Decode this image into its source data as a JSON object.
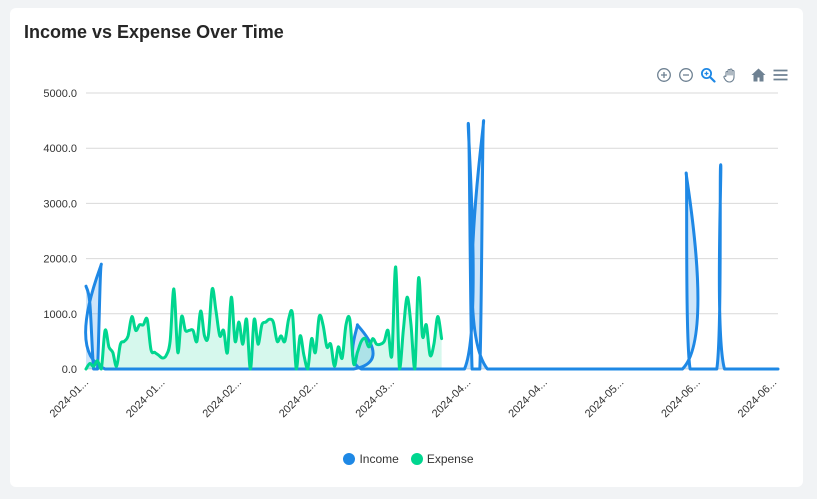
{
  "chart_data": {
    "type": "area",
    "title": "Income vs Expense Over Time",
    "xlabel": "",
    "ylabel": "",
    "ylim": [
      0,
      5000
    ],
    "y_ticks": [
      "0.0",
      "1000.0",
      "2000.0",
      "3000.0",
      "4000.0",
      "5000.0"
    ],
    "x_range": [
      "2024-01-01",
      "2024-06-30"
    ],
    "x_ticks": [
      {
        "date": "2024-01-01",
        "label": "2024-01..."
      },
      {
        "date": "2024-01-21",
        "label": "2024-01..."
      },
      {
        "date": "2024-02-10",
        "label": "2024-02..."
      },
      {
        "date": "2024-03-01",
        "label": "2024-02..."
      },
      {
        "date": "2024-03-21",
        "label": "2024-03..."
      },
      {
        "date": "2024-04-10",
        "label": "2024-04..."
      },
      {
        "date": "2024-04-30",
        "label": "2024-04..."
      },
      {
        "date": "2024-05-20",
        "label": "2024-05..."
      },
      {
        "date": "2024-06-09",
        "label": "2024-06..."
      },
      {
        "date": "2024-06-29",
        "label": "2024-06..."
      }
    ],
    "grid": true,
    "legend_position": "bottom-center",
    "series": [
      {
        "name": "Income",
        "color": "#1e88e5",
        "points": [
          [
            "2024-01-01",
            1500
          ],
          [
            "2024-01-02",
            1200
          ],
          [
            "2024-01-03",
            0
          ],
          [
            "2024-01-04",
            0
          ],
          [
            "2024-01-05",
            1900
          ],
          [
            "2024-01-06",
            0
          ],
          [
            "2024-03-11",
            0
          ],
          [
            "2024-03-12",
            800
          ],
          [
            "2024-03-13",
            0
          ],
          [
            "2024-04-09",
            0
          ],
          [
            "2024-04-10",
            4450
          ],
          [
            "2024-04-11",
            0
          ],
          [
            "2024-04-13",
            0
          ],
          [
            "2024-04-14",
            4500
          ],
          [
            "2024-04-15",
            0
          ],
          [
            "2024-06-05",
            0
          ],
          [
            "2024-06-06",
            3550
          ],
          [
            "2024-06-07",
            0
          ],
          [
            "2024-06-14",
            0
          ],
          [
            "2024-06-15",
            3700
          ],
          [
            "2024-06-16",
            0
          ],
          [
            "2024-06-30",
            0
          ]
        ]
      },
      {
        "name": "Expense",
        "color": "#00d68f",
        "points": [
          [
            "2024-01-01",
            0
          ],
          [
            "2024-01-02",
            100
          ],
          [
            "2024-01-03",
            50
          ],
          [
            "2024-01-04",
            150
          ],
          [
            "2024-01-05",
            0
          ],
          [
            "2024-01-06",
            700
          ],
          [
            "2024-01-07",
            400
          ],
          [
            "2024-01-08",
            300
          ],
          [
            "2024-01-09",
            50
          ],
          [
            "2024-01-10",
            450
          ],
          [
            "2024-01-11",
            500
          ],
          [
            "2024-01-12",
            600
          ],
          [
            "2024-01-13",
            950
          ],
          [
            "2024-01-14",
            700
          ],
          [
            "2024-01-15",
            800
          ],
          [
            "2024-01-16",
            800
          ],
          [
            "2024-01-17",
            900
          ],
          [
            "2024-01-18",
            350
          ],
          [
            "2024-01-19",
            300
          ],
          [
            "2024-01-20",
            250
          ],
          [
            "2024-01-21",
            200
          ],
          [
            "2024-01-22",
            250
          ],
          [
            "2024-01-23",
            500
          ],
          [
            "2024-01-24",
            1450
          ],
          [
            "2024-01-25",
            300
          ],
          [
            "2024-01-26",
            950
          ],
          [
            "2024-01-27",
            700
          ],
          [
            "2024-01-28",
            700
          ],
          [
            "2024-01-29",
            700
          ],
          [
            "2024-01-30",
            500
          ],
          [
            "2024-01-31",
            1050
          ],
          [
            "2024-02-01",
            600
          ],
          [
            "2024-02-02",
            600
          ],
          [
            "2024-02-03",
            1450
          ],
          [
            "2024-02-04",
            1050
          ],
          [
            "2024-02-05",
            600
          ],
          [
            "2024-02-06",
            700
          ],
          [
            "2024-02-07",
            300
          ],
          [
            "2024-02-08",
            1300
          ],
          [
            "2024-02-09",
            500
          ],
          [
            "2024-02-10",
            850
          ],
          [
            "2024-02-11",
            450
          ],
          [
            "2024-02-12",
            900
          ],
          [
            "2024-02-13",
            0
          ],
          [
            "2024-02-14",
            900
          ],
          [
            "2024-02-15",
            450
          ],
          [
            "2024-02-16",
            800
          ],
          [
            "2024-02-17",
            850
          ],
          [
            "2024-02-18",
            900
          ],
          [
            "2024-02-19",
            850
          ],
          [
            "2024-02-20",
            500
          ],
          [
            "2024-02-21",
            600
          ],
          [
            "2024-02-22",
            500
          ],
          [
            "2024-02-23",
            900
          ],
          [
            "2024-02-24",
            1000
          ],
          [
            "2024-02-25",
            0
          ],
          [
            "2024-02-26",
            600
          ],
          [
            "2024-02-27",
            250
          ],
          [
            "2024-02-28",
            0
          ],
          [
            "2024-02-29",
            550
          ],
          [
            "2024-03-01",
            300
          ],
          [
            "2024-03-02",
            950
          ],
          [
            "2024-03-03",
            800
          ],
          [
            "2024-03-04",
            400
          ],
          [
            "2024-03-05",
            450
          ],
          [
            "2024-03-06",
            50
          ],
          [
            "2024-03-07",
            400
          ],
          [
            "2024-03-08",
            200
          ],
          [
            "2024-03-09",
            800
          ],
          [
            "2024-03-10",
            900
          ],
          [
            "2024-03-11",
            100
          ],
          [
            "2024-03-12",
            300
          ],
          [
            "2024-03-13",
            500
          ],
          [
            "2024-03-14",
            550
          ],
          [
            "2024-03-15",
            400
          ],
          [
            "2024-03-16",
            550
          ],
          [
            "2024-03-17",
            450
          ],
          [
            "2024-03-18",
            450
          ],
          [
            "2024-03-19",
            500
          ],
          [
            "2024-03-20",
            700
          ],
          [
            "2024-03-21",
            250
          ],
          [
            "2024-03-22",
            1850
          ],
          [
            "2024-03-23",
            0
          ],
          [
            "2024-03-24",
            700
          ],
          [
            "2024-03-25",
            1300
          ],
          [
            "2024-03-26",
            800
          ],
          [
            "2024-03-27",
            0
          ],
          [
            "2024-03-28",
            1650
          ],
          [
            "2024-03-29",
            600
          ],
          [
            "2024-03-30",
            800
          ],
          [
            "2024-03-31",
            250
          ],
          [
            "2024-04-01",
            450
          ],
          [
            "2024-04-02",
            950
          ],
          [
            "2024-04-03",
            550
          ]
        ]
      }
    ]
  },
  "colors": {
    "grid": "#d9d9d9",
    "axis_text": "#333333",
    "toolbar": "#6e8192",
    "toolbar_active": "#1e88e5"
  },
  "toolbar": {
    "icons": [
      "zoom-in-icon",
      "zoom-out-icon",
      "selection-zoom-icon",
      "pan-icon",
      "reset-home-icon",
      "menu-icon"
    ]
  }
}
